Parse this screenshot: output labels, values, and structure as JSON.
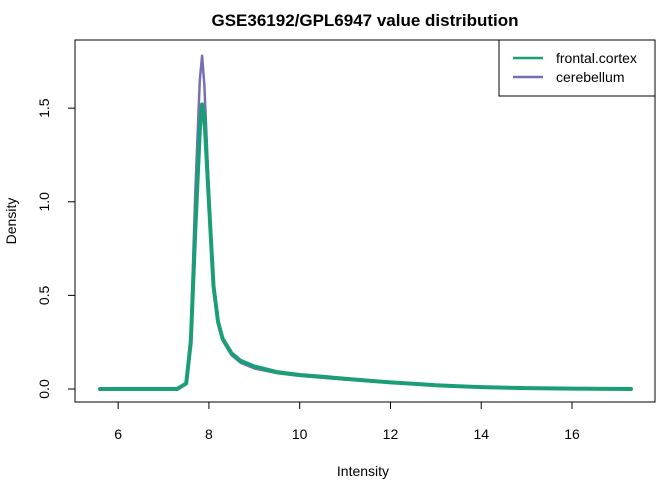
{
  "chart_data": {
    "type": "line",
    "title": "GSE36192/GPL6947 value distribution",
    "xlabel": "Intensity",
    "ylabel": "Density",
    "xlim": [
      5.6,
      17.3
    ],
    "ylim": [
      0,
      1.8
    ],
    "xticks": [
      6,
      8,
      10,
      12,
      14,
      16
    ],
    "yticks": [
      0.0,
      0.5,
      1.0,
      1.5
    ],
    "ytick_labels": [
      "0.0",
      "0.5",
      "1.0",
      "1.5"
    ],
    "grid": false,
    "legend": {
      "position": "top-right"
    },
    "series": [
      {
        "name": "frontal.cortex",
        "color": "#1b9e77",
        "x": [
          5.6,
          7.3,
          7.5,
          7.6,
          7.7,
          7.8,
          7.85,
          7.9,
          8.0,
          8.1,
          8.2,
          8.3,
          8.5,
          8.7,
          9.0,
          9.5,
          10.0,
          10.5,
          11.0,
          11.5,
          12.0,
          12.5,
          13.0,
          13.5,
          14.0,
          15.0,
          16.0,
          17.3
        ],
        "y": [
          0.0,
          0.0,
          0.03,
          0.25,
          0.85,
          1.38,
          1.52,
          1.45,
          1.0,
          0.55,
          0.36,
          0.27,
          0.19,
          0.15,
          0.12,
          0.09,
          0.075,
          0.065,
          0.055,
          0.045,
          0.035,
          0.028,
          0.02,
          0.015,
          0.01,
          0.005,
          0.002,
          0.0
        ]
      },
      {
        "name": "cerebellum",
        "color": "#7570b3",
        "x": [
          5.6,
          7.3,
          7.5,
          7.6,
          7.7,
          7.8,
          7.85,
          7.9,
          8.0,
          8.1,
          8.2,
          8.3,
          8.5,
          8.7,
          9.0,
          9.5,
          10.0,
          10.5,
          11.0,
          11.5,
          12.0,
          12.5,
          13.0,
          13.5,
          14.0,
          15.0,
          16.0,
          17.3
        ],
        "y": [
          0.0,
          0.0,
          0.03,
          0.3,
          1.05,
          1.65,
          1.78,
          1.62,
          1.05,
          0.55,
          0.35,
          0.26,
          0.18,
          0.14,
          0.11,
          0.085,
          0.07,
          0.06,
          0.05,
          0.042,
          0.034,
          0.027,
          0.02,
          0.015,
          0.01,
          0.005,
          0.002,
          0.0
        ]
      }
    ]
  }
}
